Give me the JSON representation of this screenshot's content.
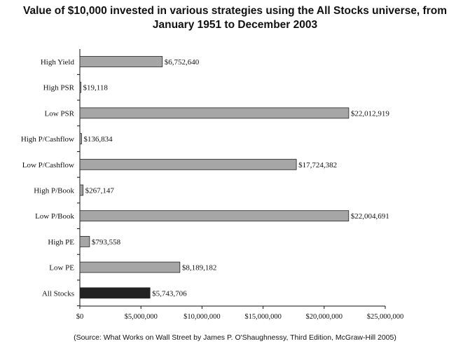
{
  "chart_data": {
    "type": "bar",
    "orientation": "horizontal",
    "title_line1": "Value of $10,000 invested in various strategies using the All Stocks universe, from",
    "title_line2": "January 1951 to December 2003",
    "categories": [
      "High Yield",
      "High PSR",
      "Low PSR",
      "High P/Cashflow",
      "Low P/Cashflow",
      "High P/Book",
      "Low P/Book",
      "High PE",
      "Low PE",
      "All Stocks"
    ],
    "values": [
      6752640,
      19118,
      22012919,
      136834,
      17724382,
      267147,
      22004691,
      793558,
      8189182,
      5743706
    ],
    "value_labels": [
      "$6,752,640",
      "$19,118",
      "$22,012,919",
      "$136,834",
      "$17,724,382",
      "$267,147",
      "$22,004,691",
      "$793,558",
      "$8,189,182",
      "$5,743,706"
    ],
    "xlim": [
      0,
      25000000
    ],
    "x_ticks": [
      0,
      5000000,
      10000000,
      15000000,
      20000000,
      25000000
    ],
    "x_tick_labels": [
      "$0",
      "$5,000,000",
      "$10,000,000",
      "$15,000,000",
      "$20,000,000",
      "$25,000,000"
    ],
    "bar_color": "#a6a6a6",
    "highlight_color": "#222222",
    "highlight_category": "All Stocks",
    "grid": false,
    "legend": "none"
  },
  "source": "(Source: What Works on Wall Street by James P. O'Shaughnessy, Third Edition, McGraw-Hill 2005)"
}
